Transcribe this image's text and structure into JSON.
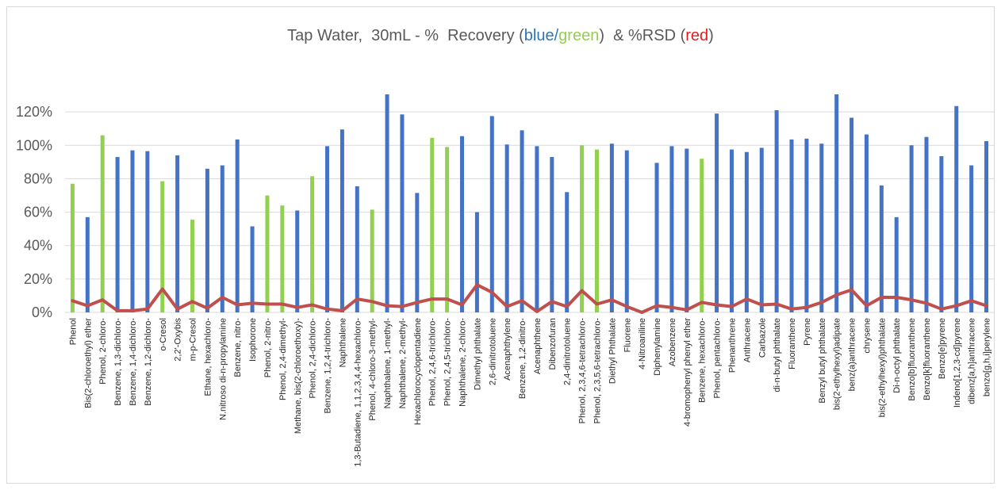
{
  "title": {
    "prefix": "Tap Water,  30mL - %  Recovery (",
    "blue": "blue",
    "slash": "/",
    "green": "green",
    "middle": ")  & %RSD (",
    "red": "red",
    "suffix": ")"
  },
  "colors": {
    "blue": "#4472c4",
    "green": "#92d050",
    "red": "#c0504d",
    "title_blue": "#2e75b6",
    "title_green": "#92d050",
    "title_red": "#e02020",
    "grid": "#d9d9d9",
    "text": "#595959"
  },
  "chart_data": {
    "type": "bar",
    "ylim": [
      0,
      1.4
    ],
    "yticks": [
      "0%",
      "20%",
      "40%",
      "60%",
      "80%",
      "100%",
      "120%"
    ],
    "grid": true,
    "categories": [
      "Phenol",
      "Bis(2-chloroethyl) ether",
      "Phenol, 2-chloro-",
      "Benzene, 1,3-dichloro-",
      "Benzene, 1,4-dichloro-",
      "Benzene, 1,2-dichloro-",
      "o-Cresol",
      "2,2'-Oxybis",
      "m-p-Cresol",
      "Ethane, hexachloro-",
      "N.nitroso di-n-propylamine",
      "Benzene, nitro-",
      "Isophorone",
      "Phenol, 2-nitro-",
      "Phenol, 2,4-dimethyl-",
      "Methane, bis(2-chloroethoxy)-",
      "Phenol, 2,4-dichloro-",
      "Benzene, 1,2,4-trichloro-",
      "Naphthalene",
      "1,3-Butadiene, 1,1,2,3,4,4-hexachloro-",
      "Phenol, 4-chloro-3-methyl-",
      "Naphthalene, 1-methyl-",
      "Naphthalene, 2-methyl-",
      "Hexachlorocyclopentadiene",
      "Phenol, 2,4,6-trichloro-",
      "Phenol, 2,4,5-trichloro-",
      "Naphthalene, 2-chloro-",
      "Dimethyl phthalate",
      "2,6-dinitrotoluene",
      "Acenaphthylene",
      "Benzene, 1,2-dinitro-",
      "Acenaphthene",
      "Dibenzofuran",
      "2,4-dinitrotoluene",
      "Phenol, 2,3,4,6-tetrachloro-",
      "Phenol, 2,3,5,6-tetrachloro-",
      "Diethyl Phthalate",
      "Fluorene",
      "4-Nitroaniline",
      "Diphenylamine",
      "Azobenzene",
      "4-bromophenyl phenyl ether",
      "Benzene, hexachloro-",
      "Phenol, pentachloro-",
      "Phenanthrene",
      "Anthracene",
      "Carbazole",
      "di-n-butyl phthalate",
      "Fluoranthene",
      "Pyrene",
      "Benzyl butyl phthalate",
      "bis(2-ethylhexyl)adipate",
      "benz(a)anthracene",
      "chrysene",
      "bis(2-ethylhexyl)phthalate",
      "Di-n-octyl phthalate",
      "Benzo[b]fluoranthene",
      "Benzo[k]fluoranthene",
      "Benzo[e]pyrene",
      "Indeno[1,2,3-cd]pyrene",
      "dibenz[a,h]anthracene",
      "benzo[g,h,i]perylene"
    ],
    "series": [
      {
        "type": "bar",
        "values": [
          0.77,
          0.57,
          1.06,
          0.93,
          0.97,
          0.965,
          0.785,
          0.94,
          0.555,
          0.86,
          0.88,
          1.035,
          0.515,
          0.7,
          0.64,
          0.61,
          0.815,
          0.995,
          1.095,
          0.755,
          0.615,
          1.305,
          1.185,
          0.715,
          1.045,
          0.99,
          1.055,
          0.6,
          1.175,
          1.005,
          1.09,
          0.995,
          0.93,
          0.72,
          1.0,
          0.975,
          1.01,
          0.97,
          0.0,
          0.895,
          0.995,
          0.98,
          0.92,
          1.19,
          0.975,
          0.96,
          0.985,
          1.21,
          1.035,
          1.04,
          1.01,
          1.305,
          1.165,
          1.065,
          0.76,
          0.57,
          1.0,
          1.05,
          0.935,
          1.235,
          0.88,
          1.025
        ],
        "colors": [
          "green",
          "blue",
          "green",
          "blue",
          "blue",
          "blue",
          "green",
          "blue",
          "green",
          "blue",
          "blue",
          "blue",
          "blue",
          "green",
          "green",
          "blue",
          "green",
          "blue",
          "blue",
          "blue",
          "green",
          "blue",
          "blue",
          "blue",
          "green",
          "green",
          "blue",
          "blue",
          "blue",
          "blue",
          "blue",
          "blue",
          "blue",
          "blue",
          "green",
          "green",
          "blue",
          "blue",
          "blue",
          "blue",
          "blue",
          "blue",
          "green",
          "blue",
          "blue",
          "blue",
          "blue",
          "blue",
          "blue",
          "blue",
          "blue",
          "blue",
          "blue",
          "blue",
          "blue",
          "blue",
          "blue",
          "blue",
          "blue",
          "blue",
          "blue",
          "blue"
        ]
      },
      {
        "type": "line",
        "values": [
          0.07,
          0.04,
          0.075,
          0.01,
          0.01,
          0.02,
          0.14,
          0.02,
          0.065,
          0.025,
          0.09,
          0.045,
          0.055,
          0.05,
          0.05,
          0.03,
          0.045,
          0.02,
          0.01,
          0.08,
          0.065,
          0.04,
          0.035,
          0.06,
          0.08,
          0.08,
          0.045,
          0.165,
          0.12,
          0.035,
          0.07,
          0.005,
          0.065,
          0.035,
          0.13,
          0.05,
          0.075,
          0.035,
          0.0,
          0.04,
          0.03,
          0.015,
          0.06,
          0.045,
          0.035,
          0.08,
          0.045,
          0.05,
          0.02,
          0.03,
          0.06,
          0.105,
          0.135,
          0.04,
          0.09,
          0.09,
          0.075,
          0.055,
          0.02,
          0.04,
          0.07,
          0.04
        ]
      }
    ]
  }
}
